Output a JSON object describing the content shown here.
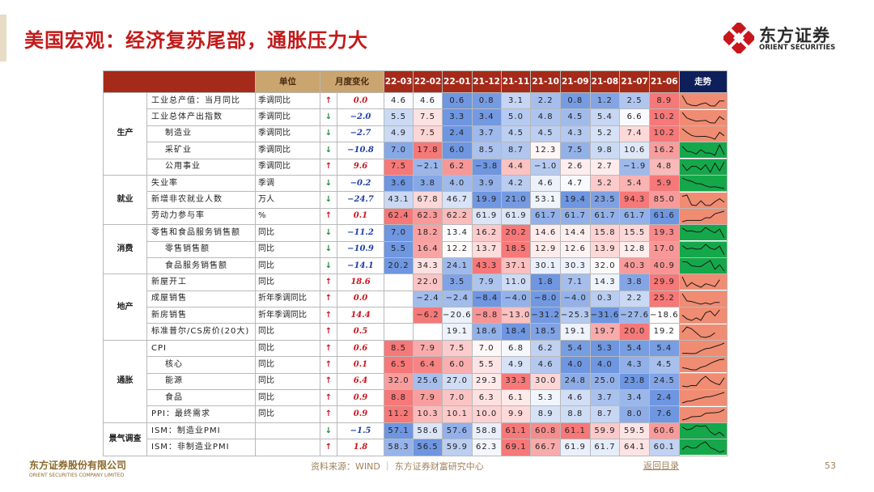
{
  "page": {
    "title": "美国宏观：经济复苏尾部，通胀压力大",
    "logo_cn": "东方证券",
    "logo_en": "ORIENT SECURITIES",
    "footer_logo_cn": "东方证券股份有限公司",
    "footer_logo_en": "ORIENT SECURITIES COMPANY LIMITED",
    "source": "资料来源：WIND ｜ 东方证券财富研究中心",
    "back_link": "返回目录",
    "page_number": "53"
  },
  "colors": {
    "header_red": "#a52a19",
    "header_gold": "#caa56f",
    "trend_header": "#0f1f5c",
    "up_red": "#c8161d",
    "down_green": "#1d8a3a",
    "trend_red_bg": "#f08c72",
    "trend_green_bg": "#14a84a"
  },
  "table": {
    "headers": {
      "unit": "单位",
      "change": "月度变化",
      "trend": "走势",
      "months": [
        "22-03",
        "22-02",
        "22-01",
        "21-12",
        "21-11",
        "21-10",
        "21-09",
        "21-08",
        "21-07",
        "21-06"
      ]
    },
    "categories": [
      {
        "name": "生产",
        "rows": [
          {
            "indicator": "工业总产值：当月同比",
            "unit": "季调同比",
            "dir": "up",
            "change": "0.0",
            "values": [
              "4.6",
              "4.6",
              "0.6",
              "0.8",
              "3.1",
              "2.2",
              "0.8",
              "1.2",
              "2.5",
              "8.9"
            ],
            "trend_bg": "red",
            "sub": false
          },
          {
            "indicator": "工业总体产出指数",
            "unit": "季调同比",
            "dir": "down",
            "change": "−2.0",
            "values": [
              "5.5",
              "7.5",
              "3.3",
              "3.4",
              "5.0",
              "4.8",
              "4.5",
              "5.4",
              "6.6",
              "10.2"
            ],
            "trend_bg": "red",
            "sub": false
          },
          {
            "indicator": "制造业",
            "unit": "季调同比",
            "dir": "down",
            "change": "−2.7",
            "values": [
              "4.9",
              "7.5",
              "2.4",
              "3.7",
              "4.5",
              "4.5",
              "4.3",
              "5.2",
              "7.4",
              "10.2"
            ],
            "trend_bg": "red",
            "sub": true
          },
          {
            "indicator": "采矿业",
            "unit": "季调同比",
            "dir": "down",
            "change": "−10.8",
            "values": [
              "7.0",
              "17.8",
              "6.0",
              "8.5",
              "8.7",
              "12.3",
              "7.5",
              "9.8",
              "10.6",
              "16.2"
            ],
            "trend_bg": "green",
            "sub": true
          },
          {
            "indicator": "公用事业",
            "unit": "季调同比",
            "dir": "up",
            "change": "9.6",
            "values": [
              "7.5",
              "−2.1",
              "6.2",
              "−3.8",
              "4.4",
              "−1.0",
              "2.6",
              "2.7",
              "−1.9",
              "4.8"
            ],
            "trend_bg": "green",
            "sub": true
          }
        ]
      },
      {
        "name": "就业",
        "rows": [
          {
            "indicator": "失业率",
            "unit": "季调",
            "dir": "down",
            "change": "−0.2",
            "values": [
              "3.6",
              "3.8",
              "4.0",
              "3.9",
              "4.2",
              "4.6",
              "4.7",
              "5.2",
              "5.4",
              "5.9"
            ],
            "trend_bg": "green",
            "sub": false
          },
          {
            "indicator": "新增非农就业人数",
            "unit": "万人",
            "dir": "down",
            "change": "−24.7",
            "values": [
              "43.1",
              "67.8",
              "46.7",
              "19.9",
              "21.0",
              "53.1",
              "19.4",
              "23.5",
              "94.3",
              "85.0"
            ],
            "trend_bg": "red",
            "sub": false
          },
          {
            "indicator": "劳动力参与率",
            "unit": "%",
            "dir": "up",
            "change": "0.1",
            "values": [
              "62.4",
              "62.3",
              "62.2",
              "61.9",
              "61.9",
              "61.7",
              "61.7",
              "61.7",
              "61.7",
              "61.6"
            ],
            "trend_bg": "red",
            "sub": false
          }
        ]
      },
      {
        "name": "消费",
        "rows": [
          {
            "indicator": "零售和食品服务销售额",
            "unit": "同比",
            "dir": "down",
            "change": "−11.2",
            "values": [
              "7.0",
              "18.2",
              "13.4",
              "16.2",
              "20.2",
              "14.6",
              "14.4",
              "15.8",
              "15.5",
              "19.3"
            ],
            "trend_bg": "green",
            "sub": false
          },
          {
            "indicator": "零售销售额",
            "unit": "同比",
            "dir": "down",
            "change": "−10.9",
            "values": [
              "5.5",
              "16.4",
              "12.2",
              "13.7",
              "18.5",
              "12.9",
              "12.6",
              "13.9",
              "12.8",
              "17.0"
            ],
            "trend_bg": "green",
            "sub": true
          },
          {
            "indicator": "食品服务销售额",
            "unit": "同比",
            "dir": "down",
            "change": "−14.1",
            "values": [
              "20.2",
              "34.3",
              "24.1",
              "43.3",
              "37.1",
              "30.1",
              "30.3",
              "32.0",
              "40.3",
              "40.9"
            ],
            "trend_bg": "green",
            "sub": true
          }
        ]
      },
      {
        "name": "地产",
        "rows": [
          {
            "indicator": "新屋开工",
            "unit": "同比",
            "dir": "up",
            "change": "18.6",
            "values": [
              "",
              "22.0",
              "3.5",
              "7.9",
              "11.0",
              "1.8",
              "7.1",
              "14.3",
              "3.8",
              "29.9"
            ],
            "trend_bg": "red",
            "sub": false
          },
          {
            "indicator": "成屋销售",
            "unit": "折年季调同比",
            "dir": "up",
            "change": "0.0",
            "values": [
              "",
              "−2.4",
              "−2.4",
              "−8.4",
              "−4.0",
              "−8.0",
              "−4.0",
              "0.3",
              "2.2",
              "25.2"
            ],
            "trend_bg": "red",
            "sub": false
          },
          {
            "indicator": "新房销售",
            "unit": "折年季调同比",
            "dir": "up",
            "change": "14.4",
            "values": [
              "",
              "−6.2",
              "−20.6",
              "−8.8",
              "−13.0",
              "−31.2",
              "−25.3",
              "−31.6",
              "−27.6",
              "−18.6"
            ],
            "trend_bg": "red",
            "sub": false
          },
          {
            "indicator": "标准普尔/CS房价(20大)",
            "unit": "同比",
            "dir": "up",
            "change": "0.5",
            "values": [
              "",
              "",
              "19.1",
              "18.6",
              "18.4",
              "18.5",
              "19.1",
              "19.7",
              "20.0",
              "19.2"
            ],
            "trend_bg": "red",
            "sub": false
          }
        ]
      },
      {
        "name": "通胀",
        "rows": [
          {
            "indicator": "CPI",
            "unit": "同比",
            "dir": "up",
            "change": "0.6",
            "values": [
              "8.5",
              "7.9",
              "7.5",
              "7.0",
              "6.8",
              "6.2",
              "5.4",
              "5.3",
              "5.4",
              "5.4"
            ],
            "trend_bg": "red",
            "sub": false
          },
          {
            "indicator": "核心",
            "unit": "同比",
            "dir": "up",
            "change": "0.1",
            "values": [
              "6.5",
              "6.4",
              "6.0",
              "5.5",
              "4.9",
              "4.6",
              "4.0",
              "4.0",
              "4.3",
              "4.5"
            ],
            "trend_bg": "red",
            "sub": true
          },
          {
            "indicator": "能源",
            "unit": "同比",
            "dir": "up",
            "change": "6.4",
            "values": [
              "32.0",
              "25.6",
              "27.0",
              "29.3",
              "33.3",
              "30.0",
              "24.8",
              "25.0",
              "23.8",
              "24.5"
            ],
            "trend_bg": "red",
            "sub": true
          },
          {
            "indicator": "食品",
            "unit": "同比",
            "dir": "up",
            "change": "0.9",
            "values": [
              "8.8",
              "7.9",
              "7.0",
              "6.3",
              "6.1",
              "5.3",
              "4.6",
              "3.7",
              "3.4",
              "2.4"
            ],
            "trend_bg": "red",
            "sub": true
          },
          {
            "indicator": "PPI：最终需求",
            "unit": "同比",
            "dir": "up",
            "change": "0.9",
            "values": [
              "11.2",
              "10.3",
              "10.1",
              "10.0",
              "9.9",
              "8.9",
              "8.8",
              "8.7",
              "8.0",
              "7.6"
            ],
            "trend_bg": "red",
            "sub": false
          }
        ]
      },
      {
        "name": "景气调查",
        "rows": [
          {
            "indicator": "ISM：制造业PMI",
            "unit": "",
            "dir": "down",
            "change": "−1.5",
            "values": [
              "57.1",
              "58.6",
              "57.6",
              "58.8",
              "61.1",
              "60.8",
              "61.1",
              "59.9",
              "59.5",
              "60.6"
            ],
            "trend_bg": "green",
            "sub": false
          },
          {
            "indicator": "ISM：非制造业PMI",
            "unit": "",
            "dir": "up",
            "change": "1.8",
            "values": [
              "58.3",
              "56.5",
              "59.9",
              "62.3",
              "69.1",
              "66.7",
              "61.9",
              "61.7",
              "64.1",
              "60.1"
            ],
            "trend_bg": "green",
            "sub": false
          }
        ]
      }
    ]
  }
}
